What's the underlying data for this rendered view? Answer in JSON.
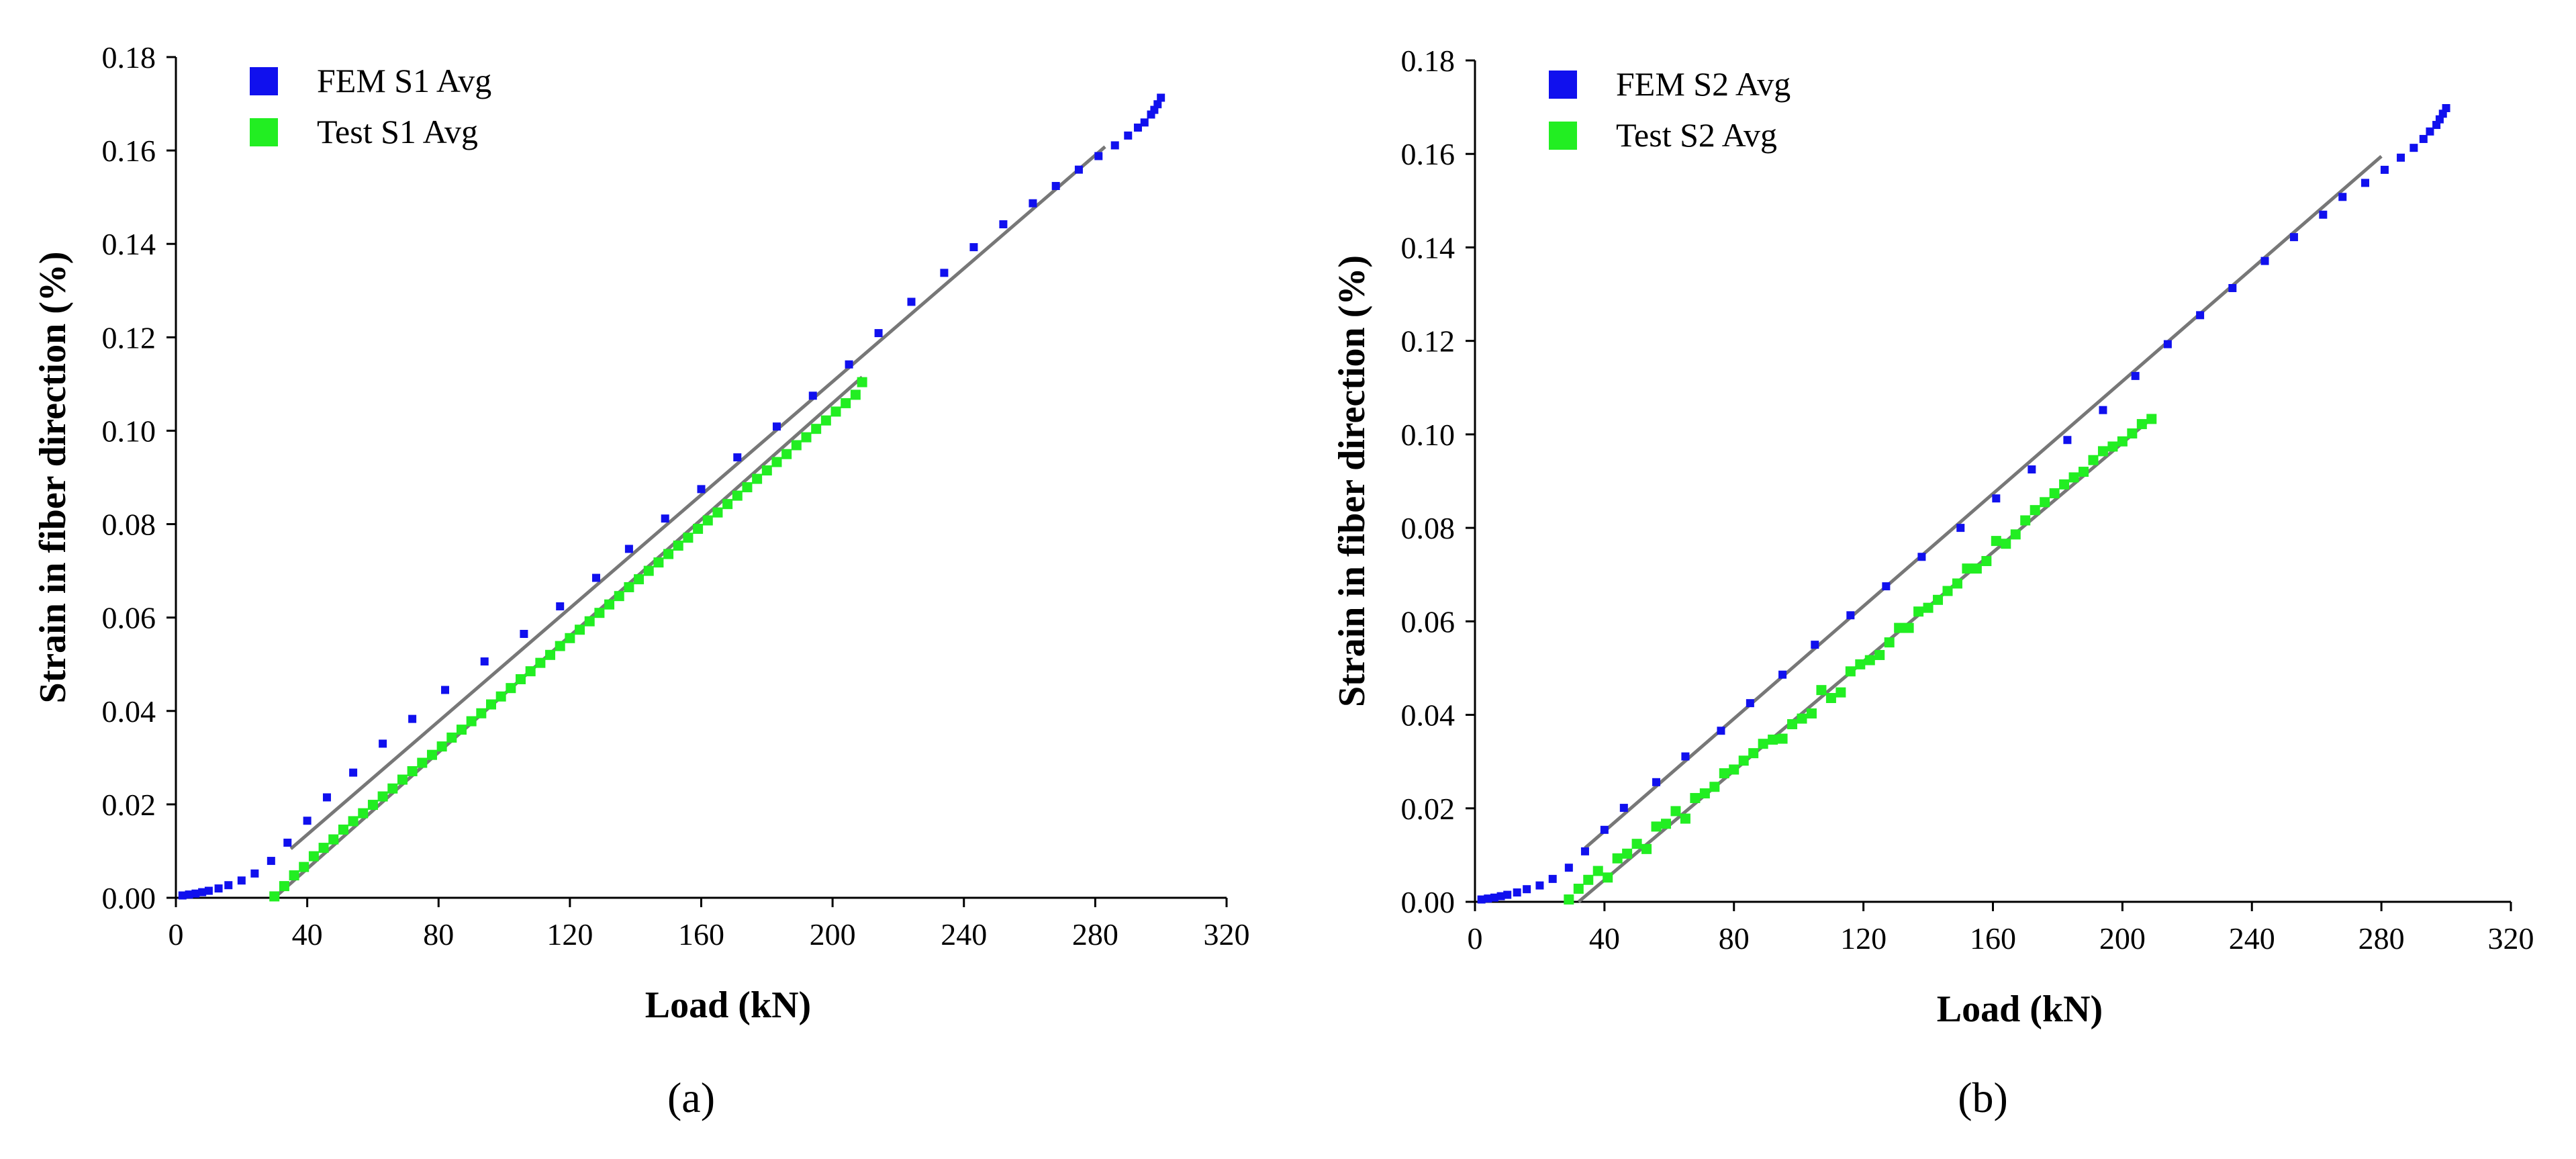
{
  "chart_data": [
    {
      "type": "scatter",
      "panel_label": "(a)",
      "xlabel": "Load (kN)",
      "ylabel": "Strain in fiber direction (%)",
      "xlim": [
        0,
        320
      ],
      "ylim": [
        0,
        0.18
      ],
      "xticks": [
        "0",
        "40",
        "80",
        "120",
        "160",
        "200",
        "240",
        "280",
        "320"
      ],
      "yticks": [
        "0.00",
        "0.02",
        "0.04",
        "0.06",
        "0.08",
        "0.10",
        "0.12",
        "0.14",
        "0.16",
        "0.18"
      ],
      "legend_position": "top-left",
      "series": [
        {
          "name": "FEM S1 Avg",
          "color": "#1010ee",
          "x": [
            2,
            4,
            6,
            8,
            10,
            13,
            16,
            20,
            24,
            29,
            34,
            40,
            46,
            54,
            63,
            72,
            82,
            94,
            106,
            117,
            128,
            138,
            149,
            160,
            171,
            183,
            194,
            205,
            214,
            224,
            234,
            243,
            252,
            261,
            268,
            275,
            281,
            286,
            290,
            293,
            295,
            297,
            298,
            299,
            300
          ],
          "y": [
            0.0005,
            0.0007,
            0.0009,
            0.0012,
            0.0015,
            0.002,
            0.0027,
            0.0037,
            0.0052,
            0.0079,
            0.0118,
            0.0165,
            0.0215,
            0.0268,
            0.033,
            0.0383,
            0.0445,
            0.0506,
            0.0565,
            0.0624,
            0.0685,
            0.0747,
            0.0812,
            0.0875,
            0.0943,
            0.1009,
            0.1075,
            0.1142,
            0.1209,
            0.1276,
            0.1338,
            0.1393,
            0.1442,
            0.1487,
            0.1524,
            0.1559,
            0.1588,
            0.1611,
            0.1632,
            0.1649,
            0.166,
            0.1677,
            0.1687,
            0.1699,
            0.1713
          ]
        },
        {
          "name": "Test S1 Avg",
          "color": "#22ee22",
          "x": [
            30,
            33,
            36,
            39,
            42,
            45,
            48,
            51,
            54,
            57,
            60,
            63,
            66,
            69,
            72,
            75,
            78,
            81,
            84,
            87,
            90,
            93,
            96,
            99,
            102,
            105,
            108,
            111,
            114,
            117,
            120,
            123,
            126,
            129,
            132,
            135,
            138,
            141,
            144,
            147,
            150,
            153,
            156,
            159,
            162,
            165,
            168,
            171,
            174,
            177,
            180,
            183,
            186,
            189,
            192,
            195,
            198,
            201,
            204,
            207,
            209
          ],
          "y": [
            0.0003,
            0.0025,
            0.0048,
            0.0066,
            0.0089,
            0.0107,
            0.0125,
            0.0146,
            0.0164,
            0.0181,
            0.0199,
            0.0217,
            0.0234,
            0.0253,
            0.0271,
            0.0289,
            0.0306,
            0.0324,
            0.0343,
            0.036,
            0.0378,
            0.0395,
            0.0414,
            0.0431,
            0.0449,
            0.0468,
            0.0485,
            0.0503,
            0.052,
            0.0539,
            0.0556,
            0.0574,
            0.0592,
            0.061,
            0.0628,
            0.0646,
            0.0665,
            0.0682,
            0.07,
            0.0718,
            0.0736,
            0.0754,
            0.0771,
            0.079,
            0.0808,
            0.0825,
            0.0843,
            0.0861,
            0.0879,
            0.0897,
            0.0915,
            0.0933,
            0.095,
            0.0969,
            0.0986,
            0.1004,
            0.1022,
            0.1041,
            0.1059,
            0.1077,
            0.1104
          ]
        }
      ],
      "fit_lines": [
        {
          "x": [
            35,
            283
          ],
          "y": [
            0.0105,
            0.1608
          ]
        },
        {
          "x": [
            30,
            209
          ],
          "y": [
            0.0,
            0.1115
          ]
        }
      ]
    },
    {
      "type": "scatter",
      "panel_label": "(b)",
      "xlabel": "Load (kN)",
      "ylabel": "Strain in fiber direction (%)",
      "xlim": [
        0,
        320
      ],
      "ylim": [
        0,
        0.18
      ],
      "xticks": [
        "0",
        "40",
        "80",
        "120",
        "160",
        "200",
        "240",
        "280",
        "320"
      ],
      "yticks": [
        "0.00",
        "0.02",
        "0.04",
        "0.06",
        "0.08",
        "0.10",
        "0.12",
        "0.14",
        "0.16",
        "0.18"
      ],
      "legend_position": "top-left",
      "series": [
        {
          "name": "FEM S2 Avg",
          "color": "#1010ee",
          "x": [
            2,
            4,
            6,
            8,
            10,
            13,
            16,
            20,
            24,
            29,
            34,
            40,
            46,
            56,
            65,
            76,
            85,
            95,
            105,
            116,
            127,
            138,
            150,
            161,
            172,
            183,
            194,
            204,
            214,
            224,
            234,
            244,
            253,
            262,
            268,
            275,
            281,
            286,
            290,
            293,
            295,
            297,
            298,
            299,
            300
          ],
          "y": [
            0.0005,
            0.0007,
            0.0009,
            0.0012,
            0.0015,
            0.002,
            0.0027,
            0.0035,
            0.0049,
            0.0073,
            0.0108,
            0.0154,
            0.0201,
            0.0256,
            0.0311,
            0.0366,
            0.0425,
            0.0486,
            0.055,
            0.0613,
            0.0675,
            0.0738,
            0.08,
            0.0863,
            0.0925,
            0.0988,
            0.1052,
            0.1125,
            0.1193,
            0.1255,
            0.1313,
            0.1371,
            0.1422,
            0.147,
            0.1508,
            0.1538,
            0.1566,
            0.1592,
            0.1613,
            0.1632,
            0.1648,
            0.1662,
            0.1674,
            0.1686,
            0.1698
          ]
        },
        {
          "name": "Test S2 Avg",
          "color": "#22ee22",
          "x": [
            29,
            32,
            35,
            38,
            41,
            44,
            47,
            50,
            53,
            56,
            59,
            62,
            65,
            68,
            71,
            74,
            77,
            80,
            83,
            86,
            89,
            92,
            95,
            98,
            101,
            104,
            107,
            110,
            113,
            116,
            119,
            122,
            125,
            128,
            131,
            134,
            137,
            140,
            143,
            146,
            149,
            152,
            155,
            158,
            161,
            164,
            167,
            170,
            173,
            176,
            179,
            182,
            185,
            188,
            191,
            194,
            197,
            200,
            203,
            206,
            209
          ],
          "y": [
            0.0005,
            0.0028,
            0.0047,
            0.0066,
            0.0052,
            0.0093,
            0.0103,
            0.0124,
            0.0113,
            0.0161,
            0.0167,
            0.0194,
            0.0178,
            0.0222,
            0.0232,
            0.0246,
            0.0275,
            0.0283,
            0.0302,
            0.0318,
            0.0338,
            0.0347,
            0.0349,
            0.038,
            0.0392,
            0.0403,
            0.0453,
            0.0436,
            0.0448,
            0.0493,
            0.0508,
            0.0517,
            0.0528,
            0.0555,
            0.0586,
            0.0586,
            0.0621,
            0.0629,
            0.0646,
            0.0665,
            0.0681,
            0.0713,
            0.0713,
            0.0729,
            0.0772,
            0.0766,
            0.0786,
            0.0816,
            0.0838,
            0.0855,
            0.0874,
            0.0893,
            0.0908,
            0.092,
            0.0945,
            0.0964,
            0.0974,
            0.0985,
            0.1002,
            0.1022,
            0.1033
          ]
        }
      ],
      "fit_lines": [
        {
          "x": [
            34,
            280
          ],
          "y": [
            0.0115,
            0.1595
          ]
        },
        {
          "x": [
            32,
            210
          ],
          "y": [
            0.0,
            0.104
          ]
        }
      ]
    }
  ]
}
